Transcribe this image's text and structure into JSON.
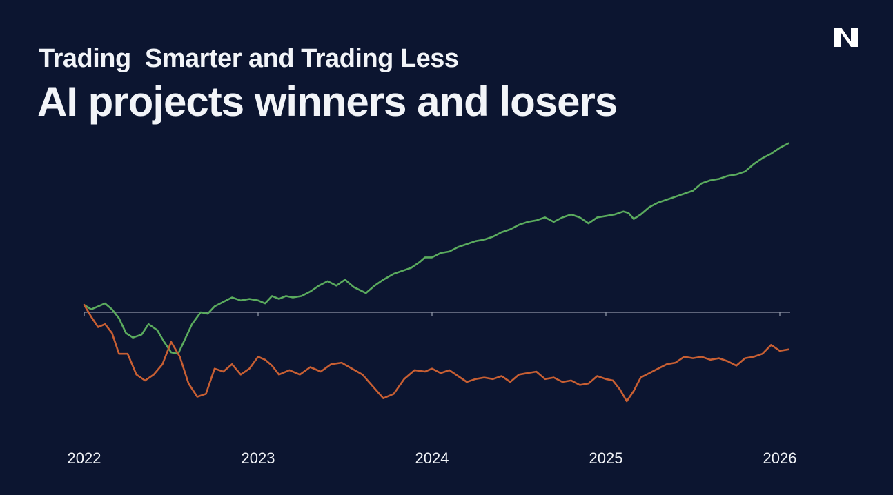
{
  "header": {
    "subtitle": "Trading  Smarter and Trading Less",
    "title": "AI projects winners and losers"
  },
  "logo": {
    "icon": "n-logo-icon",
    "color": "#ffffff"
  },
  "colors": {
    "background": "#0c1530",
    "winners": "#5bab5e",
    "losers": "#c85f33",
    "baseline": "#8e95a6",
    "text": "#f2f4f8"
  },
  "chart_data": {
    "type": "line",
    "title": "AI projects winners and losers",
    "subtitle": "Trading  Smarter and Trading Less",
    "xlabel": "",
    "ylabel": "",
    "xlim": [
      2022,
      2026
    ],
    "ylim": [
      -70,
      115
    ],
    "baseline": 0,
    "grid": false,
    "legend": "none",
    "x_ticks": [
      2022,
      2023,
      2024,
      2025,
      2026
    ],
    "x_tick_labels": [
      "2022",
      "2023",
      "2024",
      "2025",
      "2026"
    ],
    "series": [
      {
        "name": "winners",
        "color": "#5bab5e",
        "points": [
          [
            2022.0,
            5
          ],
          [
            2022.04,
            2
          ],
          [
            2022.08,
            4
          ],
          [
            2022.12,
            6
          ],
          [
            2022.16,
            2
          ],
          [
            2022.2,
            -4
          ],
          [
            2022.24,
            -14
          ],
          [
            2022.28,
            -17
          ],
          [
            2022.33,
            -15
          ],
          [
            2022.37,
            -8
          ],
          [
            2022.42,
            -12
          ],
          [
            2022.46,
            -20
          ],
          [
            2022.5,
            -27
          ],
          [
            2022.54,
            -28
          ],
          [
            2022.58,
            -18
          ],
          [
            2022.62,
            -8
          ],
          [
            2022.67,
            0
          ],
          [
            2022.71,
            -1
          ],
          [
            2022.75,
            4
          ],
          [
            2022.8,
            7
          ],
          [
            2022.85,
            10
          ],
          [
            2022.9,
            8
          ],
          [
            2022.95,
            9
          ],
          [
            2023.0,
            8
          ],
          [
            2023.04,
            6
          ],
          [
            2023.08,
            11
          ],
          [
            2023.12,
            9
          ],
          [
            2023.16,
            11
          ],
          [
            2023.2,
            10
          ],
          [
            2023.25,
            11
          ],
          [
            2023.3,
            14
          ],
          [
            2023.35,
            18
          ],
          [
            2023.4,
            21
          ],
          [
            2023.45,
            18
          ],
          [
            2023.5,
            22
          ],
          [
            2023.55,
            17
          ],
          [
            2023.62,
            13
          ],
          [
            2023.67,
            18
          ],
          [
            2023.72,
            22
          ],
          [
            2023.78,
            26
          ],
          [
            2023.83,
            28
          ],
          [
            2023.88,
            30
          ],
          [
            2023.93,
            34
          ],
          [
            2023.96,
            37
          ],
          [
            2024.0,
            37
          ],
          [
            2024.05,
            40
          ],
          [
            2024.1,
            41
          ],
          [
            2024.15,
            44
          ],
          [
            2024.2,
            46
          ],
          [
            2024.25,
            48
          ],
          [
            2024.3,
            49
          ],
          [
            2024.35,
            51
          ],
          [
            2024.4,
            54
          ],
          [
            2024.45,
            56
          ],
          [
            2024.5,
            59
          ],
          [
            2024.55,
            61
          ],
          [
            2024.6,
            62
          ],
          [
            2024.65,
            64
          ],
          [
            2024.7,
            61
          ],
          [
            2024.75,
            64
          ],
          [
            2024.8,
            66
          ],
          [
            2024.85,
            64
          ],
          [
            2024.9,
            60
          ],
          [
            2024.95,
            64
          ],
          [
            2025.0,
            65
          ],
          [
            2025.05,
            66
          ],
          [
            2025.1,
            68
          ],
          [
            2025.13,
            67
          ],
          [
            2025.16,
            63
          ],
          [
            2025.2,
            66
          ],
          [
            2025.25,
            71
          ],
          [
            2025.3,
            74
          ],
          [
            2025.35,
            76
          ],
          [
            2025.4,
            78
          ],
          [
            2025.45,
            80
          ],
          [
            2025.5,
            82
          ],
          [
            2025.55,
            87
          ],
          [
            2025.6,
            89
          ],
          [
            2025.65,
            90
          ],
          [
            2025.7,
            92
          ],
          [
            2025.75,
            93
          ],
          [
            2025.8,
            95
          ],
          [
            2025.85,
            100
          ],
          [
            2025.9,
            104
          ],
          [
            2025.95,
            107
          ],
          [
            2026.0,
            111
          ],
          [
            2026.05,
            114
          ]
        ]
      },
      {
        "name": "losers",
        "color": "#c85f33",
        "points": [
          [
            2022.0,
            5
          ],
          [
            2022.04,
            -3
          ],
          [
            2022.08,
            -10
          ],
          [
            2022.12,
            -8
          ],
          [
            2022.16,
            -14
          ],
          [
            2022.2,
            -28
          ],
          [
            2022.25,
            -28
          ],
          [
            2022.3,
            -42
          ],
          [
            2022.35,
            -46
          ],
          [
            2022.4,
            -42
          ],
          [
            2022.45,
            -35
          ],
          [
            2022.5,
            -20
          ],
          [
            2022.55,
            -30
          ],
          [
            2022.6,
            -48
          ],
          [
            2022.65,
            -57
          ],
          [
            2022.7,
            -55
          ],
          [
            2022.75,
            -38
          ],
          [
            2022.8,
            -40
          ],
          [
            2022.85,
            -35
          ],
          [
            2022.9,
            -42
          ],
          [
            2022.95,
            -38
          ],
          [
            2023.0,
            -30
          ],
          [
            2023.04,
            -32
          ],
          [
            2023.08,
            -36
          ],
          [
            2023.12,
            -42
          ],
          [
            2023.18,
            -39
          ],
          [
            2023.24,
            -42
          ],
          [
            2023.3,
            -37
          ],
          [
            2023.36,
            -40
          ],
          [
            2023.42,
            -35
          ],
          [
            2023.48,
            -34
          ],
          [
            2023.54,
            -38
          ],
          [
            2023.6,
            -42
          ],
          [
            2023.66,
            -50
          ],
          [
            2023.72,
            -58
          ],
          [
            2023.78,
            -55
          ],
          [
            2023.84,
            -45
          ],
          [
            2023.9,
            -39
          ],
          [
            2023.96,
            -40
          ],
          [
            2024.0,
            -38
          ],
          [
            2024.05,
            -41
          ],
          [
            2024.1,
            -39
          ],
          [
            2024.15,
            -43
          ],
          [
            2024.2,
            -47
          ],
          [
            2024.25,
            -45
          ],
          [
            2024.3,
            -44
          ],
          [
            2024.35,
            -45
          ],
          [
            2024.4,
            -43
          ],
          [
            2024.45,
            -47
          ],
          [
            2024.5,
            -42
          ],
          [
            2024.55,
            -41
          ],
          [
            2024.6,
            -40
          ],
          [
            2024.65,
            -45
          ],
          [
            2024.7,
            -44
          ],
          [
            2024.75,
            -47
          ],
          [
            2024.8,
            -46
          ],
          [
            2024.85,
            -49
          ],
          [
            2024.9,
            -48
          ],
          [
            2024.95,
            -43
          ],
          [
            2025.0,
            -45
          ],
          [
            2025.04,
            -46
          ],
          [
            2025.08,
            -52
          ],
          [
            2025.12,
            -60
          ],
          [
            2025.16,
            -53
          ],
          [
            2025.2,
            -44
          ],
          [
            2025.25,
            -41
          ],
          [
            2025.3,
            -38
          ],
          [
            2025.35,
            -35
          ],
          [
            2025.4,
            -34
          ],
          [
            2025.45,
            -30
          ],
          [
            2025.5,
            -31
          ],
          [
            2025.55,
            -30
          ],
          [
            2025.6,
            -32
          ],
          [
            2025.65,
            -31
          ],
          [
            2025.7,
            -33
          ],
          [
            2025.75,
            -36
          ],
          [
            2025.8,
            -31
          ],
          [
            2025.85,
            -30
          ],
          [
            2025.9,
            -28
          ],
          [
            2025.95,
            -22
          ],
          [
            2026.0,
            -26
          ],
          [
            2026.05,
            -25
          ]
        ]
      }
    ]
  }
}
